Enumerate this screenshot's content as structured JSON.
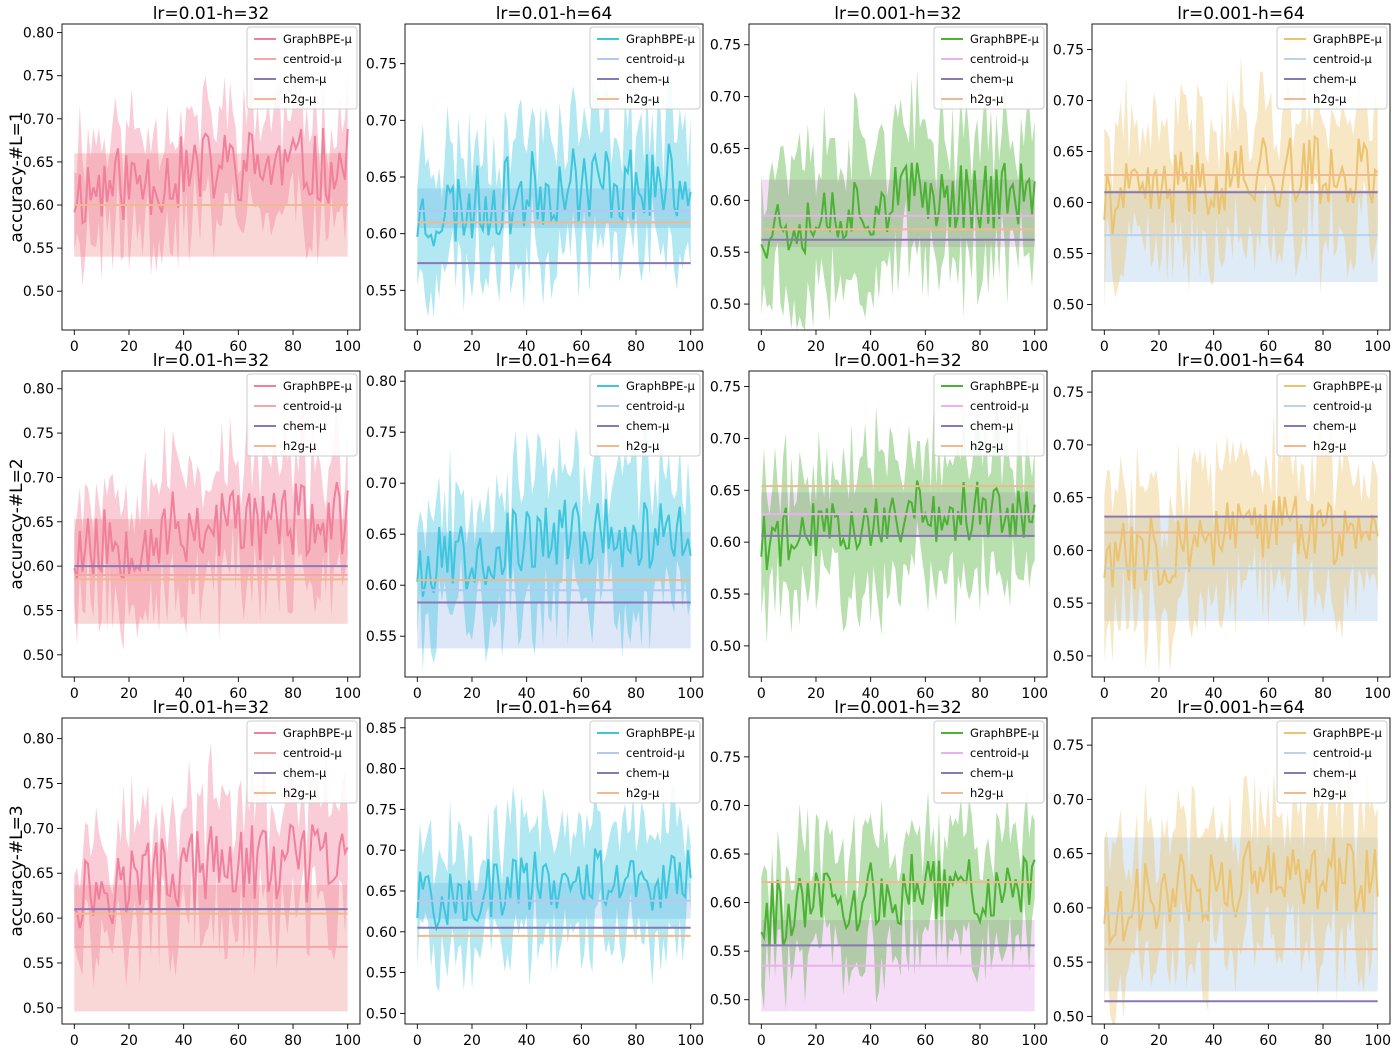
{
  "chart_data": [
    {
      "type": "line",
      "title": "lr=0.01-h=32",
      "ylabel": "accuracy-#L=1",
      "xlim": [
        0,
        100
      ],
      "ylim": [
        0.455,
        0.81
      ],
      "xticks": [
        "0",
        "20",
        "40",
        "60",
        "80",
        "100"
      ],
      "yticks": [
        "0.50",
        "0.55",
        "0.60",
        "0.65",
        "0.70",
        "0.75",
        "0.80"
      ],
      "series": [
        {
          "name": "GraphBPE-μ",
          "color": "#f0809b",
          "kind": "curve",
          "mean": 0.64,
          "amp": 0.045,
          "band": 0.06,
          "seed": 11
        },
        {
          "name": "centroid-μ",
          "color": "#f5a6a6",
          "kind": "flat",
          "value": 0.6,
          "band_low": 0.54,
          "band_high": 0.66
        },
        {
          "name": "chem-μ",
          "color": "#8878b6",
          "kind": "flat",
          "value": 0.6
        },
        {
          "name": "h2g-μ",
          "color": "#f0b98e",
          "kind": "flat",
          "value": 0.6
        }
      ]
    },
    {
      "type": "line",
      "title": "lr=0.01-h=64",
      "ylabel": "",
      "xlim": [
        0,
        100
      ],
      "ylim": [
        0.515,
        0.785
      ],
      "xticks": [
        "0",
        "20",
        "40",
        "60",
        "80",
        "100"
      ],
      "yticks": [
        "0.55",
        "0.60",
        "0.65",
        "0.70",
        "0.75"
      ],
      "series": [
        {
          "name": "GraphBPE-μ",
          "color": "#3ec6de",
          "kind": "curve",
          "mean": 0.64,
          "amp": 0.035,
          "band": 0.05,
          "seed": 23
        },
        {
          "name": "centroid-μ",
          "color": "#b4c9ef",
          "kind": "flat",
          "value": 0.62,
          "band_low": 0.605,
          "band_high": 0.64
        },
        {
          "name": "chem-μ",
          "color": "#8878b6",
          "kind": "flat",
          "value": 0.574
        },
        {
          "name": "h2g-μ",
          "color": "#f0b98e",
          "kind": "flat",
          "value": 0.61
        }
      ]
    },
    {
      "type": "line",
      "title": "lr=0.001-h=32",
      "ylabel": "",
      "xlim": [
        0,
        100
      ],
      "ylim": [
        0.475,
        0.77
      ],
      "xticks": [
        "0",
        "20",
        "40",
        "60",
        "80",
        "100"
      ],
      "yticks": [
        "0.50",
        "0.55",
        "0.60",
        "0.65",
        "0.70",
        "0.75"
      ],
      "series": [
        {
          "name": "GraphBPE-μ",
          "color": "#4cb234",
          "kind": "curve",
          "mean": 0.6,
          "amp": 0.035,
          "band": 0.06,
          "seed": 37
        },
        {
          "name": "centroid-μ",
          "color": "#e9b2ee",
          "kind": "flat",
          "value": 0.585,
          "band_low": 0.555,
          "band_high": 0.62
        },
        {
          "name": "chem-μ",
          "color": "#8878b6",
          "kind": "flat",
          "value": 0.562
        },
        {
          "name": "h2g-μ",
          "color": "#f0b98e",
          "kind": "flat",
          "value": 0.572
        }
      ]
    },
    {
      "type": "line",
      "title": "lr=0.001-h=64",
      "ylabel": "",
      "xlim": [
        0,
        100
      ],
      "ylim": [
        0.475,
        0.775
      ],
      "xticks": [
        "0",
        "20",
        "40",
        "60",
        "80",
        "100"
      ],
      "yticks": [
        "0.50",
        "0.55",
        "0.60",
        "0.65",
        "0.70",
        "0.75"
      ],
      "series": [
        {
          "name": "GraphBPE-μ",
          "color": "#ecc36f",
          "kind": "curve",
          "mean": 0.625,
          "amp": 0.035,
          "band": 0.06,
          "seed": 41
        },
        {
          "name": "centroid-μ",
          "color": "#b8d3ea",
          "kind": "flat",
          "value": 0.568,
          "band_low": 0.522,
          "band_high": 0.612
        },
        {
          "name": "chem-μ",
          "color": "#8878b6",
          "kind": "flat",
          "value": 0.61
        },
        {
          "name": "h2g-μ",
          "color": "#f0b98e",
          "kind": "flat",
          "value": 0.627
        }
      ]
    },
    {
      "type": "line",
      "title": "lr=0.01-h=32",
      "ylabel": "accuracy-#L=2",
      "xlim": [
        0,
        100
      ],
      "ylim": [
        0.475,
        0.82
      ],
      "xticks": [
        "0",
        "20",
        "40",
        "60",
        "80",
        "100"
      ],
      "yticks": [
        "0.50",
        "0.55",
        "0.60",
        "0.65",
        "0.70",
        "0.75",
        "0.80"
      ],
      "series": [
        {
          "name": "GraphBPE-μ",
          "color": "#f0809b",
          "kind": "curve",
          "mean": 0.645,
          "amp": 0.045,
          "band": 0.065,
          "seed": 53
        },
        {
          "name": "centroid-μ",
          "color": "#f5a6a6",
          "kind": "flat",
          "value": 0.59,
          "band_low": 0.535,
          "band_high": 0.653
        },
        {
          "name": "chem-μ",
          "color": "#8878b6",
          "kind": "flat",
          "value": 0.6
        },
        {
          "name": "h2g-μ",
          "color": "#f0b98e",
          "kind": "flat",
          "value": 0.585
        }
      ]
    },
    {
      "type": "line",
      "title": "lr=0.01-h=64",
      "ylabel": "",
      "xlim": [
        0,
        100
      ],
      "ylim": [
        0.51,
        0.81
      ],
      "xticks": [
        "0",
        "20",
        "40",
        "60",
        "80",
        "100"
      ],
      "yticks": [
        "0.55",
        "0.60",
        "0.65",
        "0.70",
        "0.75",
        "0.80"
      ],
      "series": [
        {
          "name": "GraphBPE-μ",
          "color": "#3ec6de",
          "kind": "curve",
          "mean": 0.645,
          "amp": 0.035,
          "band": 0.06,
          "seed": 67
        },
        {
          "name": "centroid-μ",
          "color": "#b4c9ef",
          "kind": "flat",
          "value": 0.595,
          "band_low": 0.538,
          "band_high": 0.652
        },
        {
          "name": "chem-μ",
          "color": "#8878b6",
          "kind": "flat",
          "value": 0.583
        },
        {
          "name": "h2g-μ",
          "color": "#f0b98e",
          "kind": "flat",
          "value": 0.605
        }
      ]
    },
    {
      "type": "line",
      "title": "lr=0.001-h=32",
      "ylabel": "",
      "xlim": [
        0,
        100
      ],
      "ylim": [
        0.47,
        0.765
      ],
      "xticks": [
        "0",
        "20",
        "40",
        "60",
        "80",
        "100"
      ],
      "yticks": [
        "0.50",
        "0.55",
        "0.60",
        "0.65",
        "0.70",
        "0.75"
      ],
      "series": [
        {
          "name": "GraphBPE-μ",
          "color": "#4cb234",
          "kind": "curve",
          "mean": 0.625,
          "amp": 0.03,
          "band": 0.06,
          "seed": 79
        },
        {
          "name": "centroid-μ",
          "color": "#e9b2ee",
          "kind": "flat",
          "value": 0.627,
          "band_low": 0.605,
          "band_high": 0.648
        },
        {
          "name": "chem-μ",
          "color": "#8878b6",
          "kind": "flat",
          "value": 0.606
        },
        {
          "name": "h2g-μ",
          "color": "#f0b98e",
          "kind": "flat",
          "value": 0.654
        }
      ]
    },
    {
      "type": "line",
      "title": "lr=0.001-h=64",
      "ylabel": "",
      "xlim": [
        0,
        100
      ],
      "ylim": [
        0.48,
        0.77
      ],
      "xticks": [
        "0",
        "20",
        "40",
        "60",
        "80",
        "100"
      ],
      "yticks": [
        "0.50",
        "0.55",
        "0.60",
        "0.65",
        "0.70",
        "0.75"
      ],
      "series": [
        {
          "name": "GraphBPE-μ",
          "color": "#ecc36f",
          "kind": "curve",
          "mean": 0.615,
          "amp": 0.035,
          "band": 0.06,
          "seed": 83
        },
        {
          "name": "centroid-μ",
          "color": "#b8d3ea",
          "kind": "flat",
          "value": 0.583,
          "band_low": 0.533,
          "band_high": 0.633
        },
        {
          "name": "chem-μ",
          "color": "#8878b6",
          "kind": "flat",
          "value": 0.632
        },
        {
          "name": "h2g-μ",
          "color": "#f0b98e",
          "kind": "flat",
          "value": 0.617
        }
      ]
    },
    {
      "type": "line",
      "title": "lr=0.01-h=32",
      "ylabel": "accuracy-#L=3",
      "xlim": [
        0,
        100
      ],
      "ylim": [
        0.482,
        0.823
      ],
      "xticks": [
        "0",
        "20",
        "40",
        "60",
        "80",
        "100"
      ],
      "yticks": [
        "0.50",
        "0.55",
        "0.60",
        "0.65",
        "0.70",
        "0.75",
        "0.80"
      ],
      "series": [
        {
          "name": "GraphBPE-μ",
          "color": "#f0809b",
          "kind": "curve",
          "mean": 0.655,
          "amp": 0.045,
          "band": 0.065,
          "seed": 97
        },
        {
          "name": "centroid-μ",
          "color": "#f5a6a6",
          "kind": "flat",
          "value": 0.568,
          "band_low": 0.496,
          "band_high": 0.637
        },
        {
          "name": "chem-μ",
          "color": "#8878b6",
          "kind": "flat",
          "value": 0.61
        },
        {
          "name": "h2g-μ",
          "color": "#f0b98e",
          "kind": "flat",
          "value": 0.605
        }
      ]
    },
    {
      "type": "line",
      "title": "lr=0.01-h=64",
      "ylabel": "",
      "xlim": [
        0,
        100
      ],
      "ylim": [
        0.487,
        0.862
      ],
      "xticks": [
        "0",
        "20",
        "40",
        "60",
        "80",
        "100"
      ],
      "yticks": [
        "0.50",
        "0.55",
        "0.60",
        "0.65",
        "0.70",
        "0.75",
        "0.80",
        "0.85"
      ],
      "series": [
        {
          "name": "GraphBPE-μ",
          "color": "#3ec6de",
          "kind": "curve",
          "mean": 0.66,
          "amp": 0.04,
          "band": 0.065,
          "seed": 101
        },
        {
          "name": "centroid-μ",
          "color": "#b4c9ef",
          "kind": "flat",
          "value": 0.638,
          "band_low": 0.616,
          "band_high": 0.66
        },
        {
          "name": "chem-μ",
          "color": "#8878b6",
          "kind": "flat",
          "value": 0.605
        },
        {
          "name": "h2g-μ",
          "color": "#f0b98e",
          "kind": "flat",
          "value": 0.595
        }
      ]
    },
    {
      "type": "line",
      "title": "lr=0.001-h=32",
      "ylabel": "",
      "xlim": [
        0,
        100
      ],
      "ylim": [
        0.475,
        0.79
      ],
      "xticks": [
        "0",
        "20",
        "40",
        "60",
        "80",
        "100"
      ],
      "yticks": [
        "0.50",
        "0.55",
        "0.60",
        "0.65",
        "0.70",
        "0.75"
      ],
      "series": [
        {
          "name": "GraphBPE-μ",
          "color": "#4cb234",
          "kind": "curve",
          "mean": 0.61,
          "amp": 0.035,
          "band": 0.055,
          "seed": 113
        },
        {
          "name": "centroid-μ",
          "color": "#e9b2ee",
          "kind": "flat",
          "value": 0.535,
          "band_low": 0.488,
          "band_high": 0.582
        },
        {
          "name": "chem-μ",
          "color": "#8878b6",
          "kind": "flat",
          "value": 0.556
        },
        {
          "name": "h2g-μ",
          "color": "#f0b98e",
          "kind": "flat",
          "value": 0.621
        }
      ]
    },
    {
      "type": "line",
      "title": "lr=0.001-h=64",
      "ylabel": "",
      "xlim": [
        0,
        100
      ],
      "ylim": [
        0.493,
        0.775
      ],
      "xticks": [
        "0",
        "20",
        "40",
        "60",
        "80",
        "100"
      ],
      "yticks": [
        "0.50",
        "0.55",
        "0.60",
        "0.65",
        "0.70",
        "0.75"
      ],
      "series": [
        {
          "name": "GraphBPE-μ",
          "color": "#ecc36f",
          "kind": "curve",
          "mean": 0.625,
          "amp": 0.035,
          "band": 0.06,
          "seed": 127
        },
        {
          "name": "centroid-μ",
          "color": "#b8d3ea",
          "kind": "flat",
          "value": 0.595,
          "band_low": 0.523,
          "band_high": 0.665
        },
        {
          "name": "chem-μ",
          "color": "#8878b6",
          "kind": "flat",
          "value": 0.514
        },
        {
          "name": "h2g-μ",
          "color": "#f0b98e",
          "kind": "flat",
          "value": 0.562
        }
      ]
    }
  ]
}
